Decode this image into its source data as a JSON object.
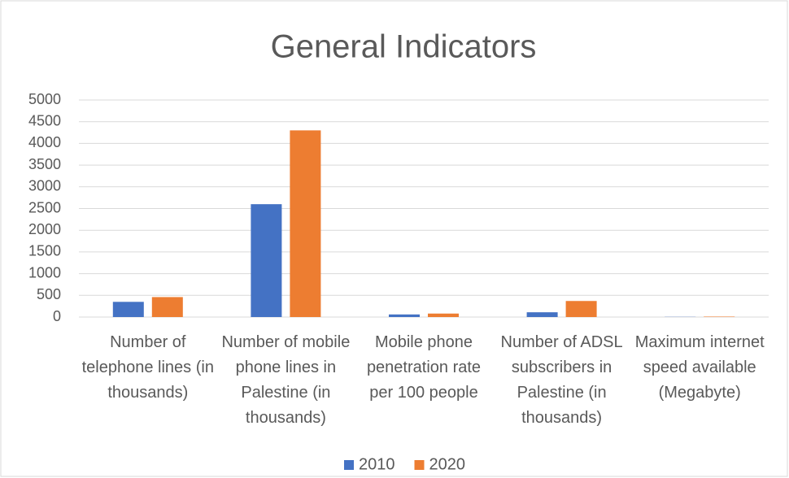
{
  "chart_data": {
    "type": "bar",
    "title": "General Indicators",
    "categories": [
      "Number of telephone lines (in thousands)",
      "Number of mobile phone lines in Palestine (in thousands)",
      "Mobile phone penetration rate per 100 people",
      "Number of ADSL subscribers in Palestine (in thousands)",
      "Maximum internet speed available (Megabyte)"
    ],
    "series": [
      {
        "name": "2010",
        "color": "#4472c4",
        "values": [
          350,
          2600,
          60,
          110,
          4
        ]
      },
      {
        "name": "2020",
        "color": "#ed7d31",
        "values": [
          460,
          4300,
          80,
          370,
          10
        ]
      }
    ],
    "ylim": [
      0,
      5000
    ],
    "yticks": [
      0,
      500,
      1000,
      1500,
      2000,
      2500,
      3000,
      3500,
      4000,
      4500,
      5000
    ],
    "grid": true,
    "legend": "bottom"
  }
}
